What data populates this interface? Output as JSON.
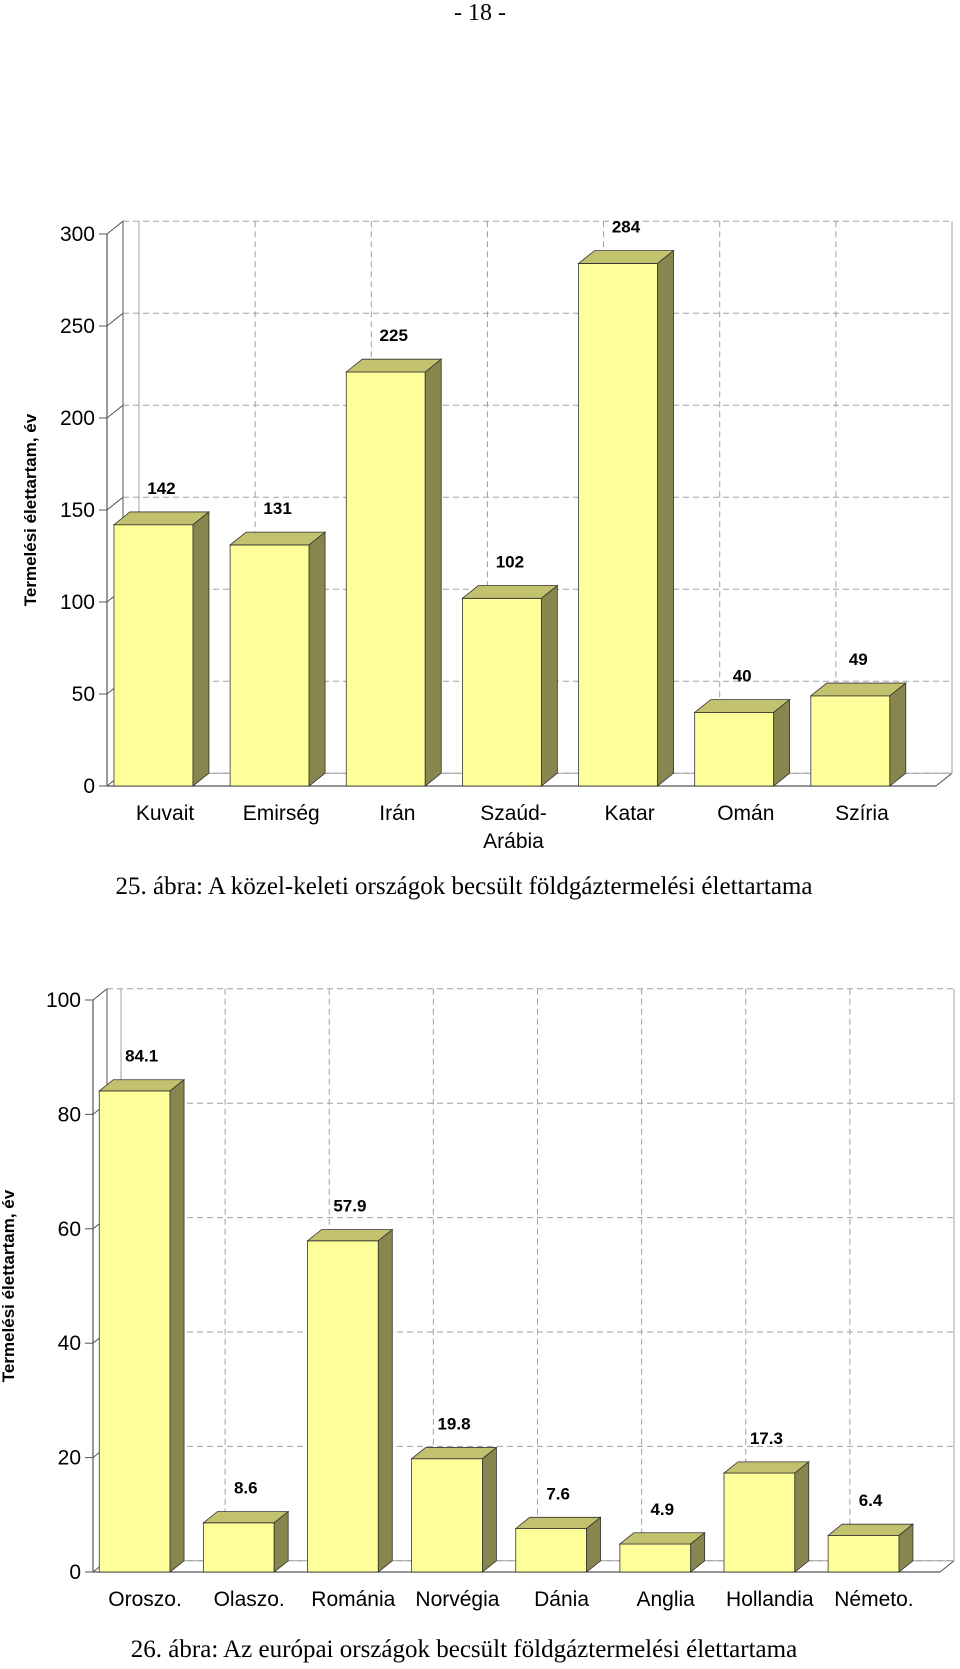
{
  "page_number": "- 18 -",
  "captions": [
    "25. ábra: A közel-keleti országok becsült földgáztermelési élettartama",
    "26. ábra: Az európai országok becsült földgáztermelési élettartama"
  ],
  "colors": {
    "bar_front": "#ffff99",
    "bar_top": "#c2c26e",
    "bar_side": "#86864e",
    "grid": "#a0a0a0",
    "axis": "#555555"
  },
  "chart_data": [
    {
      "type": "bar",
      "title": "",
      "xlabel": "",
      "ylabel": "Termelési élettartam, év",
      "categories": [
        "Kuvait",
        "Emirség",
        "Irán",
        "Szaúd-Arábia",
        "Katar",
        "Omán",
        "Szíria"
      ],
      "category_lines": [
        [
          "Kuvait"
        ],
        [
          "Emirség"
        ],
        [
          "Irán"
        ],
        [
          "Szaúd-",
          "Arábia"
        ],
        [
          "Katar"
        ],
        [
          "Omán"
        ],
        [
          "Szíria"
        ]
      ],
      "values": [
        142,
        131,
        225,
        102,
        284,
        40,
        49
      ],
      "value_labels": [
        "142",
        "131",
        "225",
        "102",
        "284",
        "40",
        "49"
      ],
      "ylim": [
        0,
        300
      ],
      "yticks": [
        0,
        50,
        100,
        150,
        200,
        250,
        300
      ],
      "grid": true,
      "legend": "none"
    },
    {
      "type": "bar",
      "title": "",
      "xlabel": "",
      "ylabel": "Termelési élettartam, év",
      "categories": [
        "Oroszo.",
        "Olaszo.",
        "Románia",
        "Norvégia",
        "Dánia",
        "Anglia",
        "Hollandia",
        "Németo."
      ],
      "category_lines": [
        [
          "Oroszo."
        ],
        [
          "Olaszo."
        ],
        [
          "Románia"
        ],
        [
          "Norvégia"
        ],
        [
          "Dánia"
        ],
        [
          "Anglia"
        ],
        [
          "Hollandia"
        ],
        [
          "Németo."
        ]
      ],
      "values": [
        84.1,
        8.6,
        57.9,
        19.8,
        7.6,
        4.9,
        17.3,
        6.4
      ],
      "value_labels": [
        "84.1",
        "8.6",
        "57.9",
        "19.8",
        "7.6",
        "4.9",
        "17.3",
        "6.4"
      ],
      "ylim": [
        0,
        100
      ],
      "yticks": [
        0,
        20,
        40,
        60,
        80,
        100
      ],
      "grid": true,
      "legend": "none"
    }
  ]
}
